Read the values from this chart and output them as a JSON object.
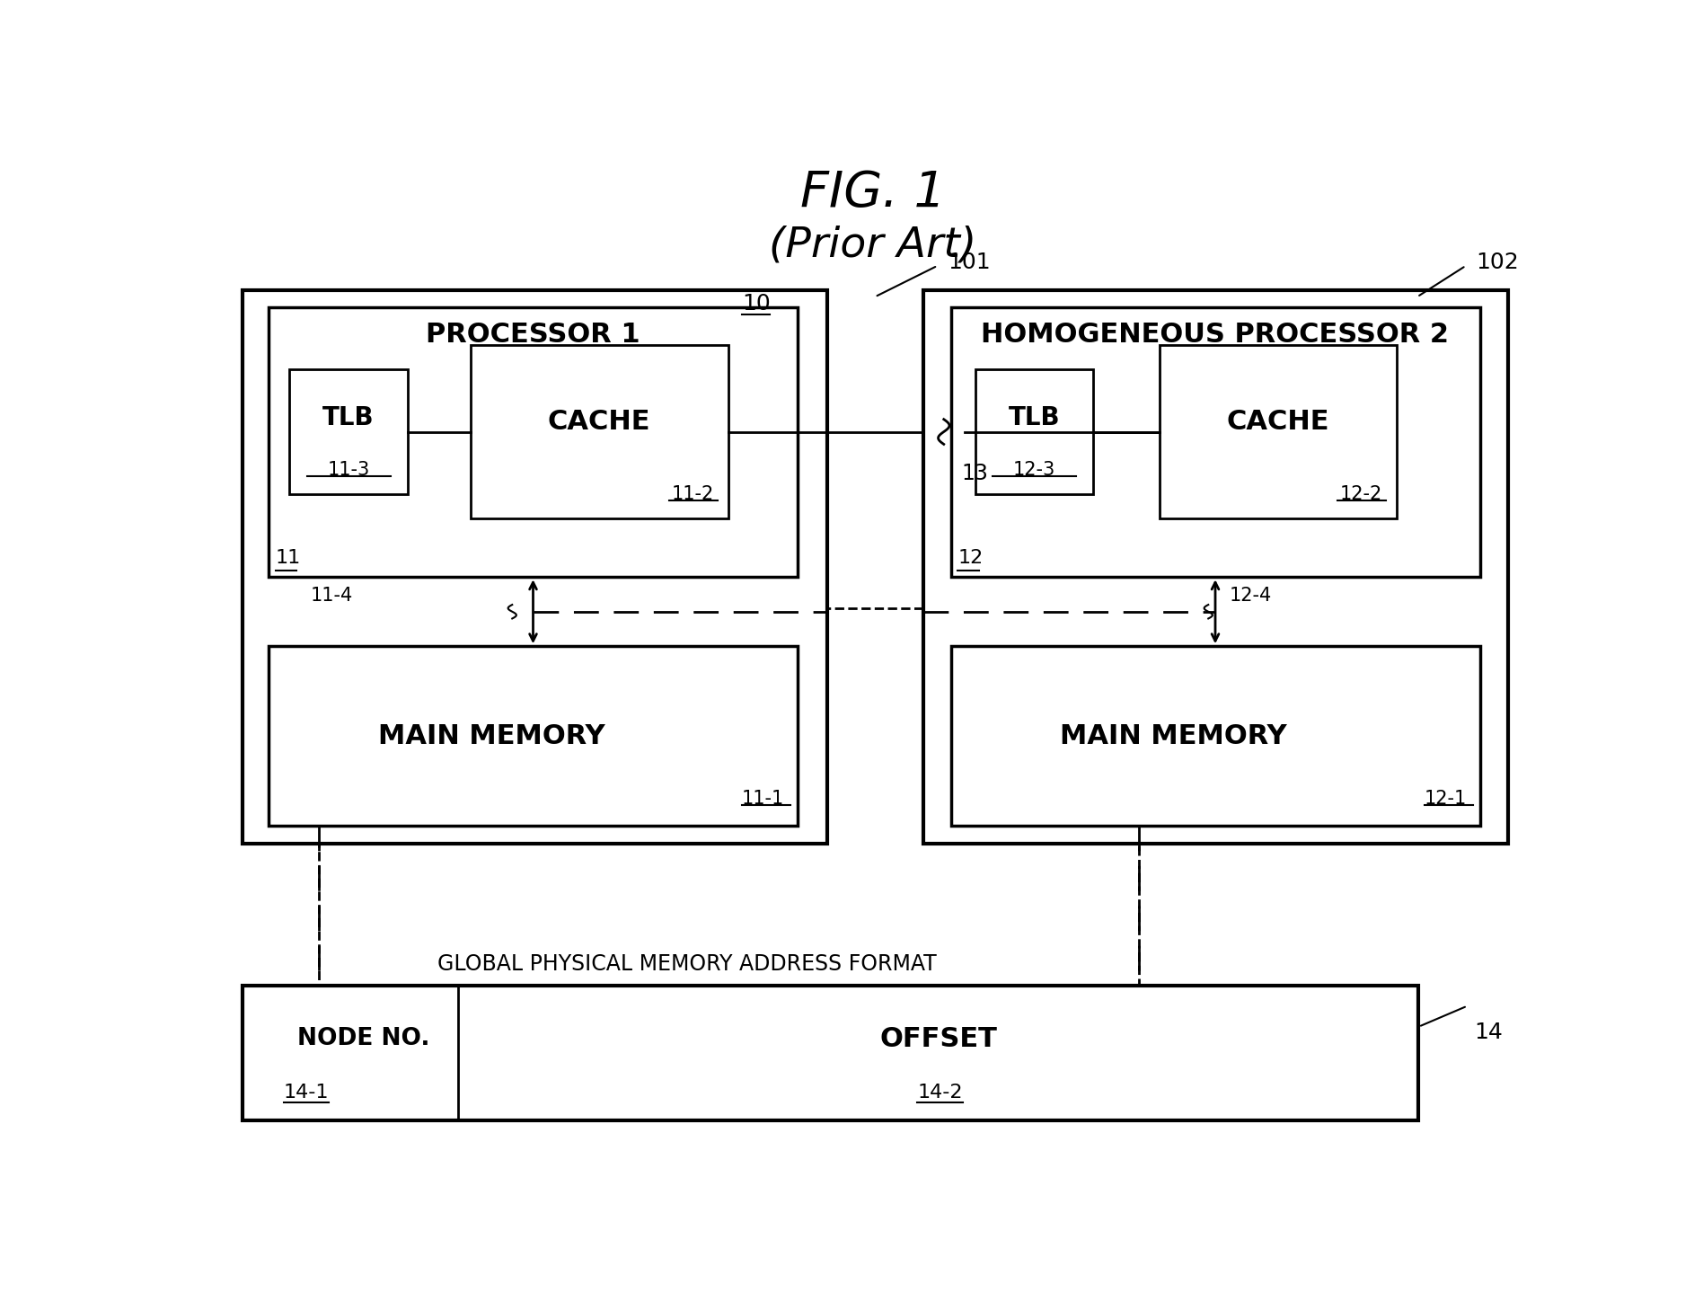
{
  "title_line1": "FIG. 1",
  "title_line2": "(Prior Art)",
  "bg_color": "#ffffff",
  "node1_label": "101",
  "node2_label": "102",
  "bus_label": "10",
  "wire_label": "13",
  "proc1_label": "PROCESSOR 1",
  "proc1_id": "11",
  "proc2_label": "HOMOGENEOUS PROCESSOR 2",
  "proc2_id": "12",
  "mem1_label": "MAIN MEMORY",
  "mem1_id": "11-1",
  "bus1_id": "11-4",
  "mem2_label": "MAIN MEMORY",
  "mem2_id": "12-1",
  "bus2_id": "12-4",
  "global_label": "GLOBAL PHYSICAL MEMORY ADDRESS FORMAT",
  "global_id": "14",
  "node_no_label": "NODE NO.",
  "node_no_id": "14-1",
  "offset_label": "OFFSET",
  "offset_id": "14-2",
  "tlb1_top": "TLB",
  "tlb1_id": "11-3",
  "cache1_top": "CACHE",
  "cache1_id": "11-2",
  "tlb2_top": "TLB",
  "tlb2_id": "12-3",
  "cache2_top": "CACHE",
  "cache2_id": "12-2"
}
